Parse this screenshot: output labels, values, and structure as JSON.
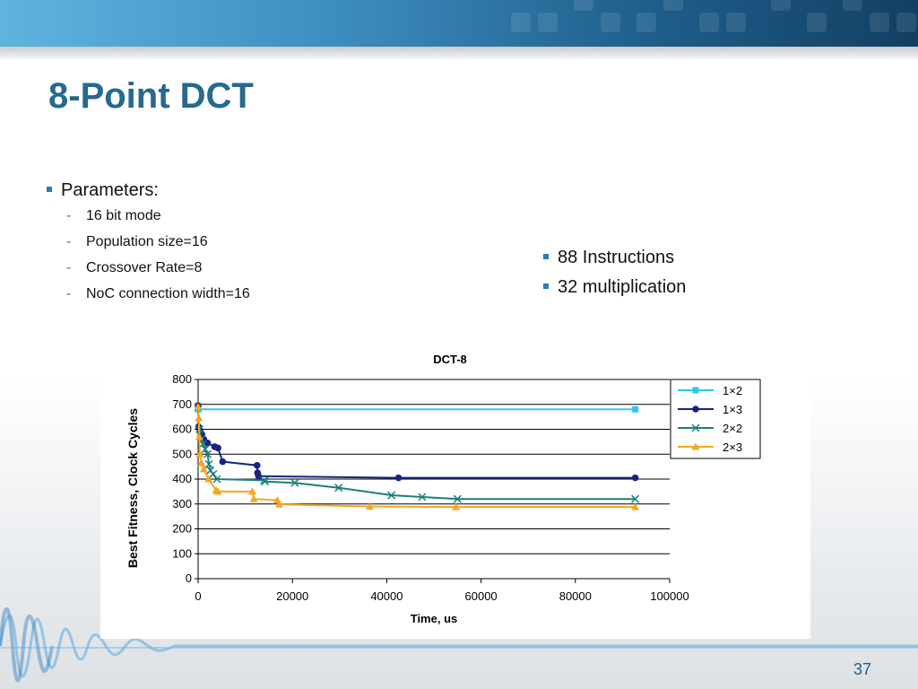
{
  "slide": {
    "title": "8-Point DCT",
    "bullets_left": {
      "heading": "Parameters:",
      "items": [
        "16 bit mode",
        "Population size=16",
        "Crossover Rate=8",
        "NoC connection width=16"
      ]
    },
    "bullets_right": [
      "88 Instructions",
      "32 multiplication"
    ],
    "page_number": "37"
  },
  "colors": {
    "title": "#27698f",
    "bullet": "#2d7bb0",
    "series_1x2": "#33c5ef",
    "series_1x3": "#1a237e",
    "series_2x2": "#1e7f7a",
    "series_2x3": "#f5a623"
  },
  "chart_data": {
    "type": "line",
    "title": "DCT-8",
    "xlabel": "Time, us",
    "ylabel": "Best Fitness, Clock Cycles",
    "xlim": [
      0,
      100000
    ],
    "ylim": [
      0,
      800
    ],
    "xticks": [
      "0",
      "20000",
      "40000",
      "60000",
      "80000",
      "100000"
    ],
    "yticks": [
      "0",
      "100",
      "200",
      "300",
      "400",
      "500",
      "600",
      "700",
      "800"
    ],
    "grid": "horizontal",
    "legend_position": "right",
    "series": [
      {
        "name": "1x2",
        "color": "#33c5ef",
        "marker": "square",
        "points": [
          [
            0,
            680
          ],
          [
            92700,
            680
          ]
        ]
      },
      {
        "name": "1x3",
        "color": "#1a237e",
        "marker": "circle",
        "points": [
          [
            0,
            695
          ],
          [
            100,
            610
          ],
          [
            400,
            595
          ],
          [
            800,
            580
          ],
          [
            1200,
            560
          ],
          [
            2000,
            545
          ],
          [
            3500,
            530
          ],
          [
            4200,
            525
          ],
          [
            5200,
            470
          ],
          [
            12500,
            455
          ],
          [
            12600,
            425
          ],
          [
            12800,
            412
          ],
          [
            42500,
            405
          ],
          [
            92700,
            405
          ]
        ]
      },
      {
        "name": "2x2",
        "color": "#1e7f7a",
        "marker": "x",
        "points": [
          [
            0,
            690
          ],
          [
            300,
            600
          ],
          [
            600,
            560
          ],
          [
            1000,
            540
          ],
          [
            1500,
            520
          ],
          [
            2000,
            500
          ],
          [
            2300,
            460
          ],
          [
            2600,
            435
          ],
          [
            3200,
            420
          ],
          [
            4000,
            400
          ],
          [
            14000,
            395
          ],
          [
            14200,
            390
          ],
          [
            20500,
            385
          ],
          [
            29800,
            365
          ],
          [
            41000,
            335
          ],
          [
            47500,
            328
          ],
          [
            55000,
            320
          ],
          [
            92700,
            320
          ]
        ]
      },
      {
        "name": "2x3",
        "color": "#f5a623",
        "marker": "triangle",
        "points": [
          [
            0,
            690
          ],
          [
            150,
            645
          ],
          [
            250,
            570
          ],
          [
            350,
            500
          ],
          [
            700,
            465
          ],
          [
            1200,
            440
          ],
          [
            2200,
            400
          ],
          [
            3800,
            355
          ],
          [
            4200,
            350
          ],
          [
            11500,
            350
          ],
          [
            11800,
            320
          ],
          [
            16800,
            315
          ],
          [
            17200,
            298
          ],
          [
            36400,
            290
          ],
          [
            54700,
            288
          ],
          [
            92700,
            288
          ]
        ]
      }
    ]
  }
}
